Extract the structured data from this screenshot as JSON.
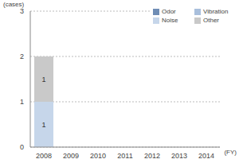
{
  "chart_data": {
    "type": "bar",
    "stacked": true,
    "y_label": "(cases)",
    "x_label": "(FY)",
    "categories": [
      "2008",
      "2009",
      "2010",
      "2011",
      "2012",
      "2013",
      "2014"
    ],
    "series": [
      {
        "name": "Odor",
        "color": "#6f8db5",
        "values": [
          0,
          0,
          0,
          0,
          0,
          0,
          0
        ]
      },
      {
        "name": "Vibration",
        "color": "#a9bfdc",
        "values": [
          0,
          0,
          0,
          0,
          0,
          0,
          0
        ]
      },
      {
        "name": "Noise",
        "color": "#c6d6ea",
        "values": [
          1,
          0,
          0,
          0,
          0,
          0,
          0
        ]
      },
      {
        "name": "Other",
        "color": "#c9c9c9",
        "values": [
          1,
          0,
          0,
          0,
          0,
          0,
          0
        ]
      }
    ],
    "ylim": [
      0,
      3
    ],
    "yticks": [
      0,
      1,
      2,
      3
    ],
    "grid": true,
    "data_labels": true,
    "legend": "upper right"
  }
}
